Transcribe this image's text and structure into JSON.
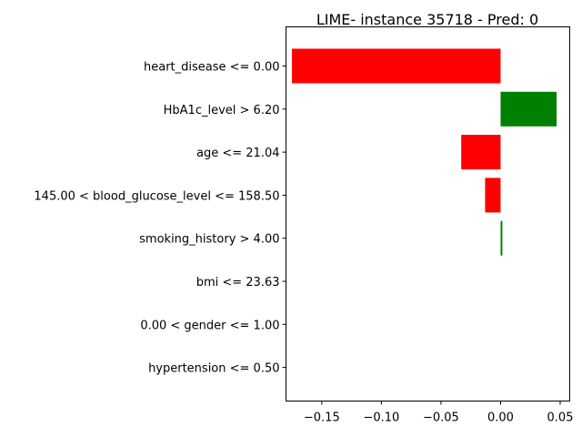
{
  "chart_data": {
    "type": "bar",
    "orientation": "horizontal",
    "title": "LIME- instance 35718 - Pred: 0",
    "xlabel": "",
    "ylabel": "",
    "categories": [
      "heart_disease <= 0.00",
      "HbA1c_level > 6.20",
      "age <= 21.04",
      "145.00 < blood_glucose_level <= 158.50",
      "smoking_history > 4.00",
      "bmi <= 23.63",
      "0.00 < gender <= 1.00",
      "hypertension <= 0.50"
    ],
    "values": [
      -0.175,
      0.047,
      -0.033,
      -0.013,
      0.0015,
      0.0,
      0.0,
      0.0
    ],
    "xlim": [
      -0.18,
      0.058
    ],
    "xticks": [
      -0.15,
      -0.1,
      -0.05,
      0.0,
      0.05
    ],
    "xtick_labels": [
      "−0.15",
      "−0.10",
      "−0.05",
      "0.00",
      "0.05"
    ],
    "colors": {
      "positive": "#008000",
      "negative": "#ff0000"
    },
    "grid": false,
    "legend": "none"
  }
}
